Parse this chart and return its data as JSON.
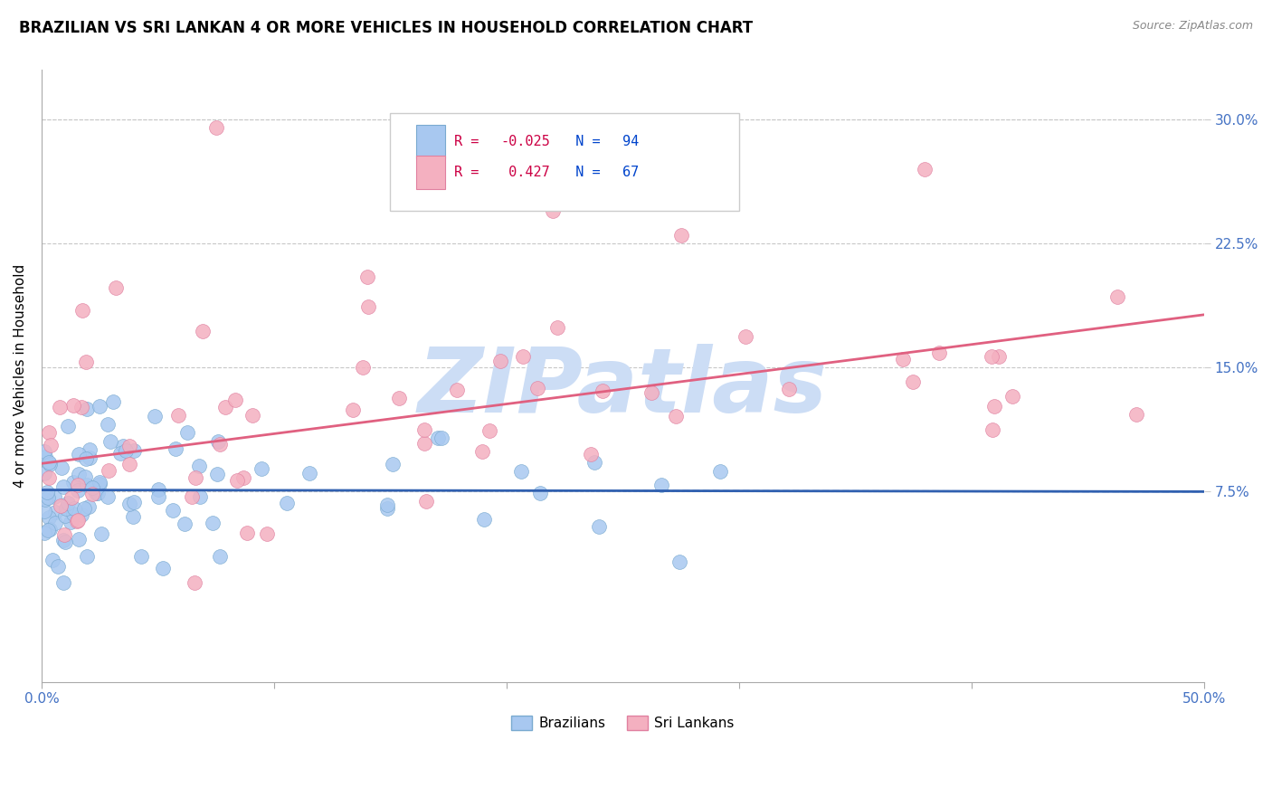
{
  "title": "BRAZILIAN VS SRI LANKAN 4 OR MORE VEHICLES IN HOUSEHOLD CORRELATION CHART",
  "source": "Source: ZipAtlas.com",
  "xlim": [
    0.0,
    50.0
  ],
  "ylim": [
    -4.0,
    33.0
  ],
  "ylabel": "4 or more Vehicles in Household",
  "legend_entries": [
    {
      "label": "Brazilians",
      "color": "#a8c8f0",
      "border": "#7aaad0",
      "R": -0.025,
      "N": 94
    },
    {
      "label": "Sri Lankans",
      "color": "#f4b0c0",
      "border": "#e080a0",
      "R": 0.427,
      "N": 67
    }
  ],
  "brazil_line_color": "#3060b0",
  "srilanka_line_color": "#e06080",
  "brazil_line_intercept": 7.6,
  "brazil_line_slope": -0.002,
  "srilanka_line_intercept": 9.2,
  "srilanka_line_slope": 0.18,
  "grid_color": "#c8c8c8",
  "ytick_vals": [
    7.5,
    15.0,
    22.5,
    30.0
  ],
  "ytick_labels": [
    "7.5%",
    "15.0%",
    "22.5%",
    "30.0%"
  ],
  "xtick_vals": [
    0,
    50
  ],
  "xtick_labels": [
    "0.0%",
    "50.0%"
  ],
  "background_color": "#ffffff",
  "title_fontsize": 12,
  "axis_tick_color": "#4472c4",
  "watermark_text": "ZIPatlas",
  "watermark_color": "#ccddf5",
  "watermark_fontsize": 72,
  "legend_R_color": "#cc0044",
  "legend_N_color": "#0044cc",
  "scatter_size": 130
}
